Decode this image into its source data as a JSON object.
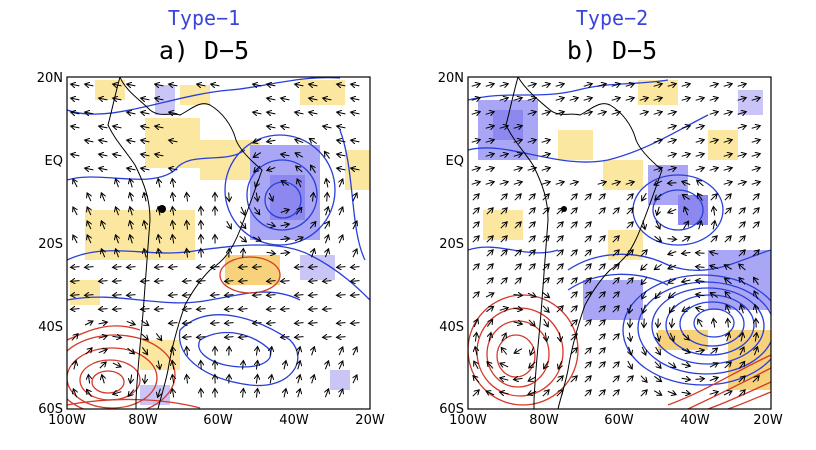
{
  "panels": [
    {
      "type_label": "Type−1",
      "title": "a) D−5",
      "x_ticks": [
        "100W",
        "80W",
        "60W",
        "40W",
        "20W"
      ],
      "y_ticks": [
        "20N",
        "EQ",
        "20S",
        "40S",
        "60S"
      ],
      "marker_location": {
        "lon": -76,
        "lat": -12
      }
    },
    {
      "type_label": "Type−2",
      "title": "b) D−5",
      "x_ticks": [
        "100W",
        "80W",
        "60W",
        "40W",
        "20W"
      ],
      "y_ticks": [
        "20N",
        "EQ",
        "20S",
        "40S",
        "60S"
      ],
      "marker_location": {
        "lon": -75,
        "lat": -12
      }
    }
  ],
  "map_extent": {
    "lon": [
      -100,
      -20
    ],
    "lat": [
      -60,
      20
    ]
  },
  "colors": {
    "title": "#3a44d8",
    "negative_anomaly_shading": "#a9a6f5",
    "positive_anomaly_shading": "#fbe7a0",
    "negative_contour": "#2a3fd9",
    "positive_contour": "#d43a2a",
    "coastline": "#000000",
    "vectors": "#000000"
  }
}
